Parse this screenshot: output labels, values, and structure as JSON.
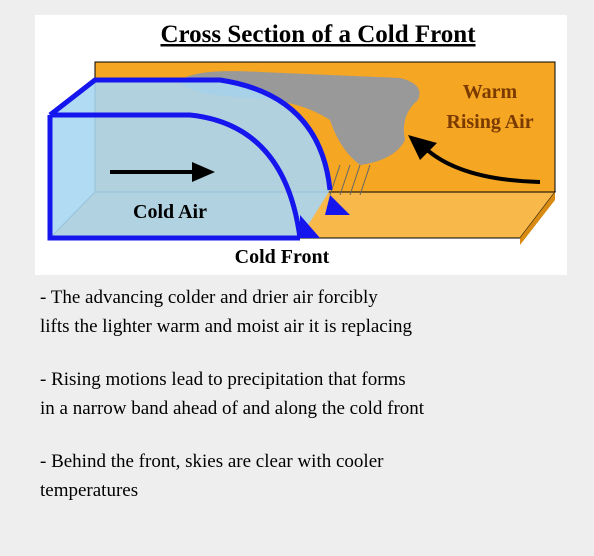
{
  "diagram": {
    "title": "Cross Section of a Cold Front",
    "labels": {
      "warm": [
        "Warm",
        "Rising Air"
      ],
      "cold_air": "Cold Air",
      "cold_front": "Cold Front"
    }
  },
  "notes": [
    [
      "- The advancing colder and drier air forcibly",
      "lifts the lighter warm and moist air it is replacing"
    ],
    [
      "- Rising motions lead to precipitation that forms",
      "in a narrow band ahead of and along the cold front"
    ],
    [
      "- Behind the front, skies are clear with cooler",
      "temperatures"
    ]
  ]
}
